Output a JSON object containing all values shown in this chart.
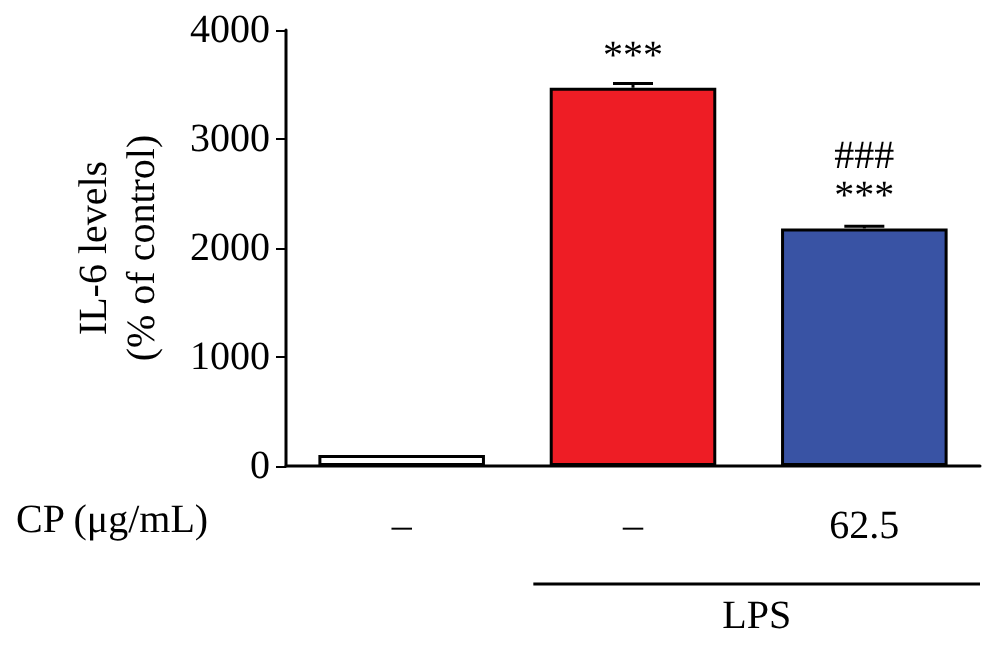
{
  "chart_data": {
    "type": "bar",
    "ylabel": "IL-6 levels\n(% of control)",
    "xlabel": "CP (μg/mL)",
    "categories": [
      "–",
      "–",
      "62.5"
    ],
    "values": [
      100,
      3470,
      2180
    ],
    "colors": [
      "#ffffff",
      "#ee1d25",
      "#3953a4"
    ],
    "errors": [
      null,
      40,
      20
    ],
    "value_labels": [
      null,
      "***",
      "###\n***"
    ],
    "ylim": [
      0,
      4000
    ],
    "yticks": [
      0,
      1000,
      2000,
      3000,
      4000
    ],
    "grid": false,
    "annotations": [
      "LPS"
    ]
  }
}
